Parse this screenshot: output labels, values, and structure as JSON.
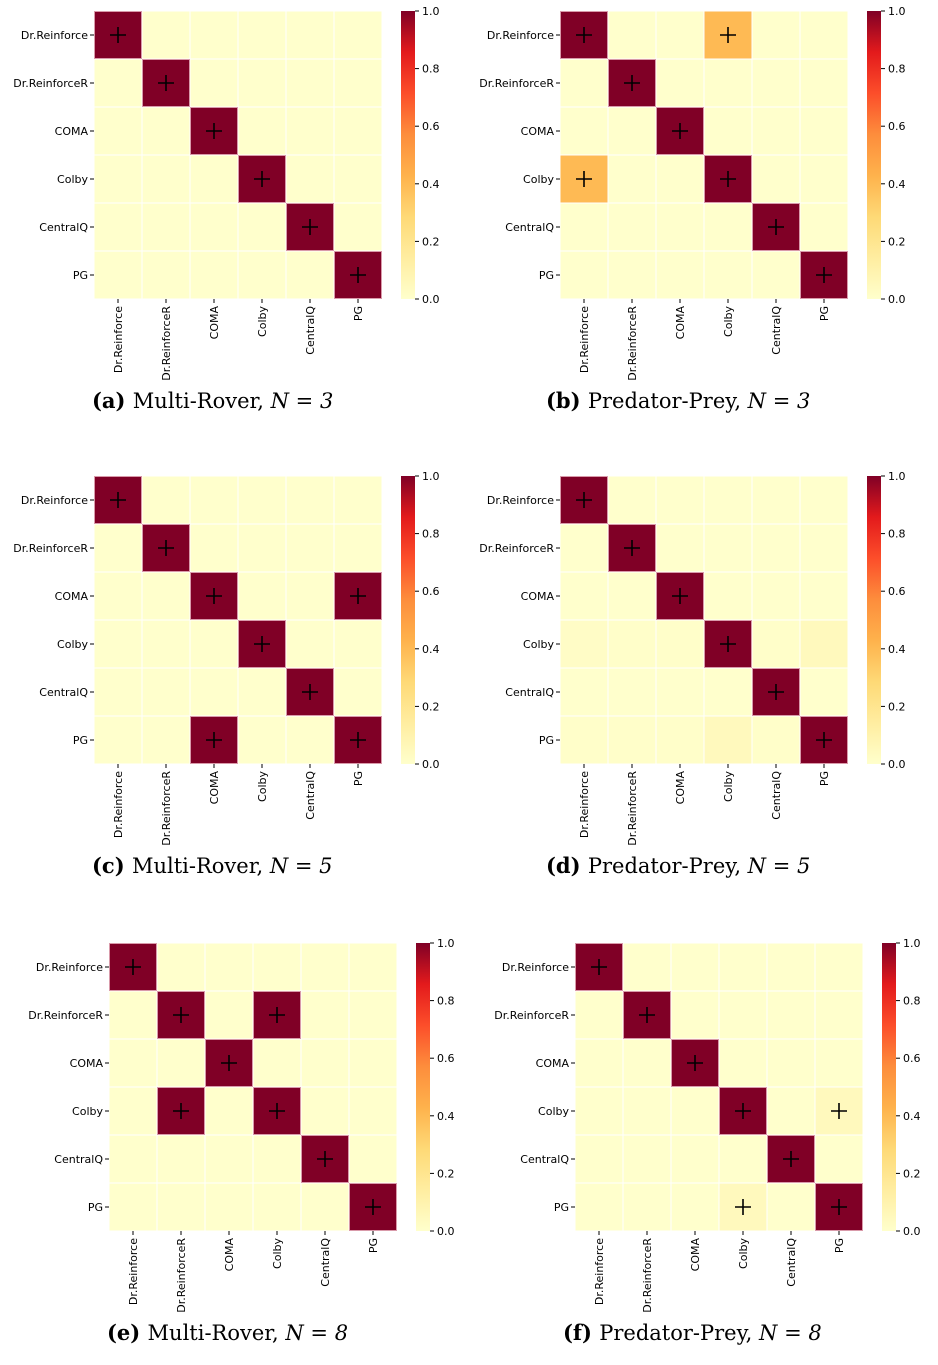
{
  "colors": {
    "low": "#ffffcc",
    "mid1": "#ffeda0",
    "mid2": "#fed976",
    "mid3": "#feb24c",
    "mid4": "#fd8d3c",
    "mid5": "#fc4e2a",
    "mid6": "#e31a1c",
    "high": "#800026",
    "grid": "#ffffff",
    "marker": "#000000",
    "highlight": "#d99aaa"
  },
  "colorbar": {
    "ticks": [
      "0.0",
      "0.2",
      "0.4",
      "0.6",
      "0.8",
      "1.0"
    ]
  },
  "chart_data": [
    {
      "type": "heatmap",
      "caption_letter": "(a)",
      "caption_text": "Multi-Rover,",
      "caption_n": "N = 3",
      "rows": [
        "Dr.Reinforce",
        "Dr.ReinforceR",
        "COMA",
        "Colby",
        "CentralQ",
        "PG"
      ],
      "cols": [
        "Dr.Reinforce",
        "Dr.ReinforceR",
        "COMA",
        "Colby",
        "CentralQ",
        "PG"
      ],
      "values": [
        [
          1,
          0,
          0,
          0,
          0,
          0
        ],
        [
          0,
          1,
          0,
          0,
          0,
          0
        ],
        [
          0,
          0,
          1,
          0,
          0,
          0
        ],
        [
          0,
          0,
          0,
          1,
          0,
          0
        ],
        [
          0,
          0,
          0,
          0,
          1,
          0
        ],
        [
          0,
          0,
          0,
          0,
          0,
          1
        ]
      ],
      "markers": [
        [
          0,
          0
        ],
        [
          1,
          1
        ],
        [
          2,
          2
        ],
        [
          3,
          3
        ],
        [
          4,
          4
        ],
        [
          5,
          5
        ]
      ],
      "vmin": 0,
      "vmax": 1
    },
    {
      "type": "heatmap",
      "caption_letter": "(b)",
      "caption_text": "Predator-Prey,",
      "caption_n": "N = 3",
      "rows": [
        "Dr.Reinforce",
        "Dr.ReinforceR",
        "COMA",
        "Colby",
        "CentralQ",
        "PG"
      ],
      "cols": [
        "Dr.Reinforce",
        "Dr.ReinforceR",
        "COMA",
        "Colby",
        "CentralQ",
        "PG"
      ],
      "values": [
        [
          1,
          0,
          0,
          0.4,
          0,
          0
        ],
        [
          0,
          1,
          0,
          0,
          0,
          0
        ],
        [
          0,
          0,
          1,
          0,
          0,
          0
        ],
        [
          0.4,
          0,
          0,
          1,
          0,
          0
        ],
        [
          0,
          0,
          0,
          0,
          1,
          0
        ],
        [
          0,
          0,
          0,
          0,
          0,
          1
        ]
      ],
      "markers": [
        [
          0,
          0
        ],
        [
          0,
          3
        ],
        [
          1,
          1
        ],
        [
          2,
          2
        ],
        [
          3,
          0
        ],
        [
          3,
          3
        ],
        [
          4,
          4
        ],
        [
          5,
          5
        ]
      ],
      "vmin": 0,
      "vmax": 1
    },
    {
      "type": "heatmap",
      "caption_letter": "(c)",
      "caption_text": "Multi-Rover,",
      "caption_n": "N = 5",
      "rows": [
        "Dr.Reinforce",
        "Dr.ReinforceR",
        "COMA",
        "Colby",
        "CentralQ",
        "PG"
      ],
      "cols": [
        "Dr.Reinforce",
        "Dr.ReinforceR",
        "COMA",
        "Colby",
        "CentralQ",
        "PG"
      ],
      "values": [
        [
          1,
          0,
          0,
          0,
          0,
          0
        ],
        [
          0,
          1,
          0,
          0,
          0,
          0
        ],
        [
          0,
          0,
          1,
          0,
          0,
          1
        ],
        [
          0,
          0,
          0,
          1,
          0,
          0
        ],
        [
          0,
          0,
          0,
          0,
          1,
          0
        ],
        [
          0,
          0,
          1,
          0,
          0,
          1
        ]
      ],
      "markers": [
        [
          0,
          0
        ],
        [
          1,
          1
        ],
        [
          2,
          2
        ],
        [
          2,
          5
        ],
        [
          3,
          3
        ],
        [
          4,
          4
        ],
        [
          5,
          2
        ],
        [
          5,
          5
        ]
      ],
      "vmin": 0,
      "vmax": 1
    },
    {
      "type": "heatmap",
      "caption_letter": "(d)",
      "caption_text": "Predator-Prey,",
      "caption_n": "N = 5",
      "rows": [
        "Dr.Reinforce",
        "Dr.ReinforceR",
        "COMA",
        "Colby",
        "CentralQ",
        "PG"
      ],
      "cols": [
        "Dr.Reinforce",
        "Dr.ReinforceR",
        "COMA",
        "Colby",
        "CentralQ",
        "PG"
      ],
      "values": [
        [
          1,
          0,
          0,
          0,
          0,
          0
        ],
        [
          0,
          1,
          0,
          0,
          0,
          0
        ],
        [
          0,
          0,
          1,
          0,
          0,
          0
        ],
        [
          0.02,
          0.01,
          0.01,
          1,
          0.01,
          0.05
        ],
        [
          0,
          0,
          0,
          0,
          1,
          0
        ],
        [
          0.01,
          0.01,
          0.01,
          0.05,
          0.01,
          1
        ]
      ],
      "markers": [
        [
          0,
          0
        ],
        [
          1,
          1
        ],
        [
          2,
          2
        ],
        [
          3,
          3
        ],
        [
          4,
          4
        ],
        [
          5,
          5
        ]
      ],
      "vmin": 0,
      "vmax": 1
    },
    {
      "type": "heatmap",
      "caption_letter": "(e)",
      "caption_text": "Multi-Rover,",
      "caption_n": "N = 8",
      "rows": [
        "Dr.Reinforce",
        "Dr.ReinforceR",
        "COMA",
        "Colby",
        "CentralQ",
        "PG"
      ],
      "cols": [
        "Dr.Reinforce",
        "Dr.ReinforceR",
        "COMA",
        "Colby",
        "CentralQ",
        "PG"
      ],
      "values": [
        [
          1,
          0,
          0,
          0,
          0,
          0
        ],
        [
          0,
          1,
          0,
          1,
          0,
          0
        ],
        [
          0,
          0,
          1,
          0,
          0,
          0
        ],
        [
          0,
          1,
          0,
          1,
          0,
          0
        ],
        [
          0,
          0,
          0,
          0,
          1,
          0
        ],
        [
          0,
          0,
          0,
          0,
          0,
          1
        ]
      ],
      "markers": [
        [
          0,
          0
        ],
        [
          1,
          1
        ],
        [
          1,
          3
        ],
        [
          2,
          2
        ],
        [
          3,
          1
        ],
        [
          3,
          3
        ],
        [
          4,
          4
        ],
        [
          5,
          5
        ]
      ],
      "vmin": 0,
      "vmax": 1
    },
    {
      "type": "heatmap",
      "caption_letter": "(f)",
      "caption_text": "Predator-Prey,",
      "caption_n": "N = 8",
      "rows": [
        "Dr.Reinforce",
        "Dr.ReinforceR",
        "COMA",
        "Colby",
        "CentralQ",
        "PG"
      ],
      "cols": [
        "Dr.Reinforce",
        "Dr.ReinforceR",
        "COMA",
        "Colby",
        "CentralQ",
        "PG"
      ],
      "values": [
        [
          1,
          0,
          0,
          0,
          0,
          0
        ],
        [
          0,
          1,
          0,
          0,
          0,
          0
        ],
        [
          0,
          0,
          1,
          0,
          0,
          0
        ],
        [
          0,
          0,
          0,
          1,
          0,
          0.05
        ],
        [
          0,
          0,
          0,
          0,
          1,
          0
        ],
        [
          0,
          0,
          0,
          0.05,
          0,
          1
        ]
      ],
      "markers": [
        [
          0,
          0
        ],
        [
          1,
          1
        ],
        [
          2,
          2
        ],
        [
          3,
          3
        ],
        [
          3,
          5
        ],
        [
          4,
          4
        ],
        [
          5,
          3
        ],
        [
          5,
          5
        ]
      ],
      "vmin": 0,
      "vmax": 1
    }
  ]
}
